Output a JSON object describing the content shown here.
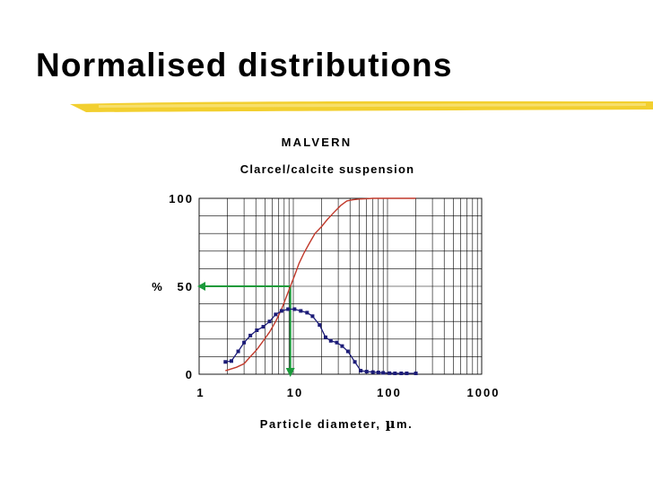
{
  "slide": {
    "title": "Normalised distributions"
  },
  "colors": {
    "accent_underline": "#f2cf2f",
    "cumulative_line": "#c0392b",
    "distribution_series": "#1c1c78",
    "guide_arrow": "#1a9a3a",
    "grid": "#000000"
  },
  "chart_data": {
    "type": "line",
    "title": "MALVERN",
    "subtitle": "Clarcel/calcite suspension",
    "xlabel_prefix": "Particle diameter, ",
    "xlabel_symbol": "µ",
    "xlabel_suffix": "m.",
    "ylabel": "%",
    "x_scale": "log",
    "xlim": [
      1,
      1000
    ],
    "ylim": [
      0,
      100
    ],
    "x_ticks": [
      1,
      10,
      100,
      1000
    ],
    "x_tick_labels": [
      "1",
      "10",
      "100",
      "1000"
    ],
    "y_ticks": [
      0,
      50,
      100
    ],
    "y_tick_labels": [
      "0",
      "50",
      "100"
    ],
    "grid": true,
    "series": [
      {
        "style": "line",
        "x": [
          1.9,
          2.5,
          3.0,
          3.5,
          4.1,
          4.8,
          5.6,
          6.5,
          7.5,
          8.3,
          9.3,
          10.3,
          11.5,
          13,
          15,
          17,
          20,
          23,
          27,
          32,
          37,
          43,
          50,
          60,
          70,
          90,
          120,
          160,
          200
        ],
        "y": [
          2,
          4,
          6,
          10,
          14,
          19,
          24,
          30,
          37,
          43,
          50,
          56,
          63,
          69,
          75,
          80,
          84,
          88,
          92,
          96,
          98.5,
          99.2,
          99.6,
          99.8,
          100,
          100,
          100,
          100,
          100
        ]
      },
      {
        "style": "line-markers",
        "x": [
          1.9,
          2.2,
          2.6,
          3.0,
          3.5,
          4.1,
          4.8,
          5.6,
          6.5,
          7.5,
          8.8,
          10.3,
          12,
          14,
          16,
          19,
          22,
          25,
          29,
          33,
          38,
          45,
          52,
          60,
          70,
          80,
          90,
          105,
          120,
          140,
          160,
          200
        ],
        "y": [
          7,
          7.5,
          13,
          18,
          22,
          25,
          27,
          30,
          34,
          36,
          37,
          37,
          36,
          35,
          33,
          28,
          21,
          19,
          18,
          16,
          13,
          7,
          2,
          1.5,
          1.2,
          1,
          0.8,
          0.6,
          0.5,
          0.5,
          0.5,
          0.5
        ]
      }
    ],
    "annotations": [
      {
        "type": "guide-arrows",
        "from": [
          1,
          50
        ],
        "corner": [
          9.3,
          50
        ],
        "to": [
          9.3,
          0
        ]
      }
    ]
  }
}
